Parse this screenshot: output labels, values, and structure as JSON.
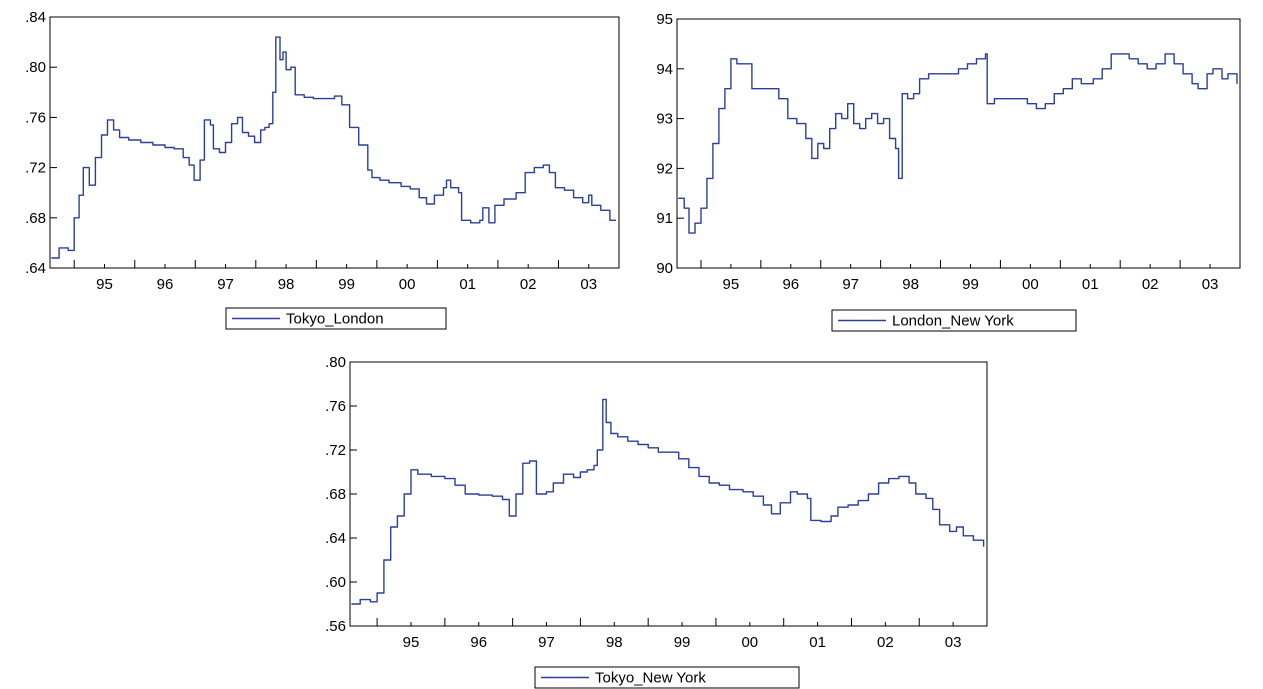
{
  "line_color": "#2b3f9a",
  "chart_data": [
    {
      "type": "line",
      "x": [
        "95",
        "96",
        "97",
        "98",
        "99",
        "00",
        "01",
        "02",
        "03"
      ],
      "yticks": [
        ".64",
        ".68",
        ".72",
        ".76",
        ".80",
        ".84"
      ],
      "ylim": [
        0.64,
        0.84
      ],
      "legend": "top",
      "series": [
        {
          "name": "Tokyo_London",
          "values": [
            [
              1994.62,
              0.648
            ],
            [
              1994.75,
              0.656
            ],
            [
              1994.9,
              0.654
            ],
            [
              1995.0,
              0.68
            ],
            [
              1995.08,
              0.698
            ],
            [
              1995.15,
              0.72
            ],
            [
              1995.25,
              0.706
            ],
            [
              1995.35,
              0.728
            ],
            [
              1995.45,
              0.746
            ],
            [
              1995.55,
              0.758
            ],
            [
              1995.65,
              0.75
            ],
            [
              1995.75,
              0.744
            ],
            [
              1995.9,
              0.742
            ],
            [
              1996.1,
              0.74
            ],
            [
              1996.3,
              0.738
            ],
            [
              1996.5,
              0.736
            ],
            [
              1996.65,
              0.735
            ],
            [
              1996.8,
              0.728
            ],
            [
              1996.9,
              0.722
            ],
            [
              1996.98,
              0.71
            ],
            [
              1997.08,
              0.726
            ],
            [
              1997.15,
              0.758
            ],
            [
              1997.25,
              0.754
            ],
            [
              1997.3,
              0.735
            ],
            [
              1997.4,
              0.732
            ],
            [
              1997.5,
              0.74
            ],
            [
              1997.6,
              0.755
            ],
            [
              1997.7,
              0.76
            ],
            [
              1997.78,
              0.748
            ],
            [
              1997.88,
              0.745
            ],
            [
              1997.98,
              0.74
            ],
            [
              1998.08,
              0.75
            ],
            [
              1998.15,
              0.752
            ],
            [
              1998.22,
              0.755
            ],
            [
              1998.28,
              0.78
            ],
            [
              1998.33,
              0.824
            ],
            [
              1998.4,
              0.806
            ],
            [
              1998.45,
              0.812
            ],
            [
              1998.5,
              0.798
            ],
            [
              1998.58,
              0.8
            ],
            [
              1998.65,
              0.778
            ],
            [
              1998.8,
              0.776
            ],
            [
              1998.95,
              0.775
            ],
            [
              1999.15,
              0.775
            ],
            [
              1999.3,
              0.777
            ],
            [
              1999.42,
              0.77
            ],
            [
              1999.55,
              0.752
            ],
            [
              1999.7,
              0.738
            ],
            [
              1999.85,
              0.718
            ],
            [
              1999.92,
              0.712
            ],
            [
              2000.05,
              0.71
            ],
            [
              2000.2,
              0.708
            ],
            [
              2000.4,
              0.705
            ],
            [
              2000.55,
              0.703
            ],
            [
              2000.7,
              0.696
            ],
            [
              2000.82,
              0.691
            ],
            [
              2000.95,
              0.698
            ],
            [
              2001.1,
              0.704
            ],
            [
              2001.15,
              0.71
            ],
            [
              2001.22,
              0.704
            ],
            [
              2001.35,
              0.7
            ],
            [
              2001.4,
              0.678
            ],
            [
              2001.55,
              0.676
            ],
            [
              2001.7,
              0.678
            ],
            [
              2001.75,
              0.688
            ],
            [
              2001.85,
              0.676
            ],
            [
              2001.95,
              0.69
            ],
            [
              2002.1,
              0.695
            ],
            [
              2002.3,
              0.7
            ],
            [
              2002.45,
              0.716
            ],
            [
              2002.6,
              0.72
            ],
            [
              2002.75,
              0.722
            ],
            [
              2002.85,
              0.716
            ],
            [
              2002.95,
              0.704
            ],
            [
              2003.1,
              0.702
            ],
            [
              2003.25,
              0.696
            ],
            [
              2003.4,
              0.692
            ],
            [
              2003.5,
              0.698
            ],
            [
              2003.55,
              0.69
            ],
            [
              2003.7,
              0.686
            ],
            [
              2003.85,
              0.678
            ],
            [
              2003.95,
              0.678
            ]
          ]
        }
      ]
    },
    {
      "type": "line",
      "x": [
        "95",
        "96",
        "97",
        "98",
        "99",
        "00",
        "01",
        "02",
        "03"
      ],
      "yticks": [
        "90",
        "91",
        "92",
        "93",
        "94",
        "95"
      ],
      "ylim": [
        90,
        95
      ],
      "legend": "top",
      "series": [
        {
          "name": "London_New York",
          "values": [
            [
              1994.62,
              91.4
            ],
            [
              1994.72,
              91.2
            ],
            [
              1994.8,
              90.7
            ],
            [
              1994.9,
              90.9
            ],
            [
              1995.0,
              91.2
            ],
            [
              1995.1,
              91.8
            ],
            [
              1995.2,
              92.5
            ],
            [
              1995.3,
              93.2
            ],
            [
              1995.4,
              93.6
            ],
            [
              1995.5,
              94.2
            ],
            [
              1995.6,
              94.1
            ],
            [
              1995.75,
              94.1
            ],
            [
              1995.85,
              93.6
            ],
            [
              1996.0,
              93.6
            ],
            [
              1996.2,
              93.6
            ],
            [
              1996.3,
              93.4
            ],
            [
              1996.45,
              93.0
            ],
            [
              1996.6,
              92.9
            ],
            [
              1996.75,
              92.6
            ],
            [
              1996.85,
              92.2
            ],
            [
              1996.95,
              92.5
            ],
            [
              1997.05,
              92.4
            ],
            [
              1997.15,
              92.8
            ],
            [
              1997.25,
              93.1
            ],
            [
              1997.35,
              93.0
            ],
            [
              1997.45,
              93.3
            ],
            [
              1997.55,
              92.9
            ],
            [
              1997.65,
              92.8
            ],
            [
              1997.75,
              93.0
            ],
            [
              1997.85,
              93.1
            ],
            [
              1997.95,
              92.9
            ],
            [
              1998.05,
              93.0
            ],
            [
              1998.15,
              92.6
            ],
            [
              1998.25,
              92.4
            ],
            [
              1998.3,
              91.8
            ],
            [
              1998.36,
              93.5
            ],
            [
              1998.45,
              93.4
            ],
            [
              1998.55,
              93.5
            ],
            [
              1998.65,
              93.8
            ],
            [
              1998.8,
              93.9
            ],
            [
              1998.95,
              93.9
            ],
            [
              1999.1,
              93.9
            ],
            [
              1999.3,
              94.0
            ],
            [
              1999.45,
              94.1
            ],
            [
              1999.6,
              94.2
            ],
            [
              1999.75,
              94.3
            ],
            [
              1999.78,
              93.3
            ],
            [
              1999.9,
              93.4
            ],
            [
              2000.1,
              93.4
            ],
            [
              2000.3,
              93.4
            ],
            [
              2000.45,
              93.3
            ],
            [
              2000.6,
              93.2
            ],
            [
              2000.75,
              93.3
            ],
            [
              2000.9,
              93.5
            ],
            [
              2001.05,
              93.6
            ],
            [
              2001.2,
              93.8
            ],
            [
              2001.35,
              93.7
            ],
            [
              2001.55,
              93.8
            ],
            [
              2001.7,
              94.0
            ],
            [
              2001.85,
              94.3
            ],
            [
              2002.0,
              94.3
            ],
            [
              2002.15,
              94.2
            ],
            [
              2002.3,
              94.1
            ],
            [
              2002.45,
              94.0
            ],
            [
              2002.6,
              94.1
            ],
            [
              2002.75,
              94.3
            ],
            [
              2002.9,
              94.1
            ],
            [
              2003.05,
              93.9
            ],
            [
              2003.2,
              93.7
            ],
            [
              2003.3,
              93.6
            ],
            [
              2003.45,
              93.9
            ],
            [
              2003.55,
              94.0
            ],
            [
              2003.7,
              93.8
            ],
            [
              2003.8,
              93.9
            ],
            [
              2003.95,
              93.7
            ]
          ]
        }
      ]
    },
    {
      "type": "line",
      "x": [
        "95",
        "96",
        "97",
        "98",
        "99",
        "00",
        "01",
        "02",
        "03"
      ],
      "yticks": [
        ".56",
        ".60",
        ".64",
        ".68",
        ".72",
        ".76",
        ".80"
      ],
      "ylim": [
        0.56,
        0.8
      ],
      "legend": "top",
      "series": [
        {
          "name": "Tokyo_New York",
          "values": [
            [
              1994.62,
              0.58
            ],
            [
              1994.75,
              0.584
            ],
            [
              1994.9,
              0.582
            ],
            [
              1995.0,
              0.59
            ],
            [
              1995.1,
              0.62
            ],
            [
              1995.2,
              0.65
            ],
            [
              1995.3,
              0.66
            ],
            [
              1995.4,
              0.68
            ],
            [
              1995.5,
              0.702
            ],
            [
              1995.6,
              0.698
            ],
            [
              1995.8,
              0.696
            ],
            [
              1996.0,
              0.694
            ],
            [
              1996.15,
              0.688
            ],
            [
              1996.3,
              0.68
            ],
            [
              1996.5,
              0.679
            ],
            [
              1996.7,
              0.678
            ],
            [
              1996.85,
              0.675
            ],
            [
              1996.95,
              0.66
            ],
            [
              1997.05,
              0.68
            ],
            [
              1997.15,
              0.708
            ],
            [
              1997.25,
              0.71
            ],
            [
              1997.35,
              0.68
            ],
            [
              1997.5,
              0.682
            ],
            [
              1997.6,
              0.69
            ],
            [
              1997.75,
              0.698
            ],
            [
              1997.9,
              0.695
            ],
            [
              1998.0,
              0.7
            ],
            [
              1998.1,
              0.702
            ],
            [
              1998.2,
              0.706
            ],
            [
              1998.25,
              0.72
            ],
            [
              1998.33,
              0.766
            ],
            [
              1998.38,
              0.745
            ],
            [
              1998.45,
              0.735
            ],
            [
              1998.55,
              0.732
            ],
            [
              1998.7,
              0.728
            ],
            [
              1998.85,
              0.725
            ],
            [
              1999.0,
              0.722
            ],
            [
              1999.15,
              0.718
            ],
            [
              1999.3,
              0.718
            ],
            [
              1999.45,
              0.712
            ],
            [
              1999.6,
              0.704
            ],
            [
              1999.75,
              0.696
            ],
            [
              1999.9,
              0.69
            ],
            [
              2000.05,
              0.688
            ],
            [
              2000.2,
              0.684
            ],
            [
              2000.4,
              0.682
            ],
            [
              2000.55,
              0.678
            ],
            [
              2000.7,
              0.67
            ],
            [
              2000.82,
              0.662
            ],
            [
              2000.95,
              0.672
            ],
            [
              2001.1,
              0.682
            ],
            [
              2001.2,
              0.68
            ],
            [
              2001.35,
              0.676
            ],
            [
              2001.4,
              0.656
            ],
            [
              2001.55,
              0.655
            ],
            [
              2001.7,
              0.66
            ],
            [
              2001.8,
              0.668
            ],
            [
              2001.95,
              0.67
            ],
            [
              2002.1,
              0.674
            ],
            [
              2002.25,
              0.68
            ],
            [
              2002.4,
              0.69
            ],
            [
              2002.55,
              0.694
            ],
            [
              2002.7,
              0.696
            ],
            [
              2002.85,
              0.69
            ],
            [
              2002.95,
              0.68
            ],
            [
              2003.1,
              0.676
            ],
            [
              2003.2,
              0.666
            ],
            [
              2003.3,
              0.652
            ],
            [
              2003.45,
              0.646
            ],
            [
              2003.55,
              0.65
            ],
            [
              2003.65,
              0.642
            ],
            [
              2003.8,
              0.638
            ],
            [
              2003.95,
              0.632
            ]
          ]
        }
      ]
    }
  ]
}
